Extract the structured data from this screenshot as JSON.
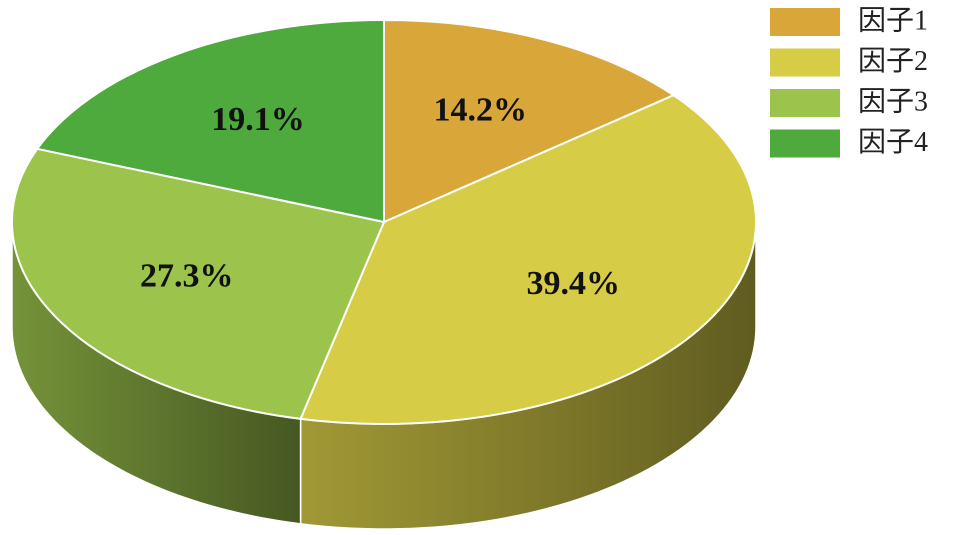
{
  "chart_data": {
    "type": "pie3d",
    "categories": [
      "因子1",
      "因子2",
      "因子3",
      "因子4"
    ],
    "values": [
      14.2,
      39.4,
      27.3,
      19.1
    ],
    "value_labels": [
      "14.2%",
      "39.4%",
      "27.3%",
      "19.1%"
    ],
    "colors": [
      "#D9A63A",
      "#D6CC46",
      "#9CC44C",
      "#4EAA3C"
    ],
    "legend": "top-right"
  }
}
